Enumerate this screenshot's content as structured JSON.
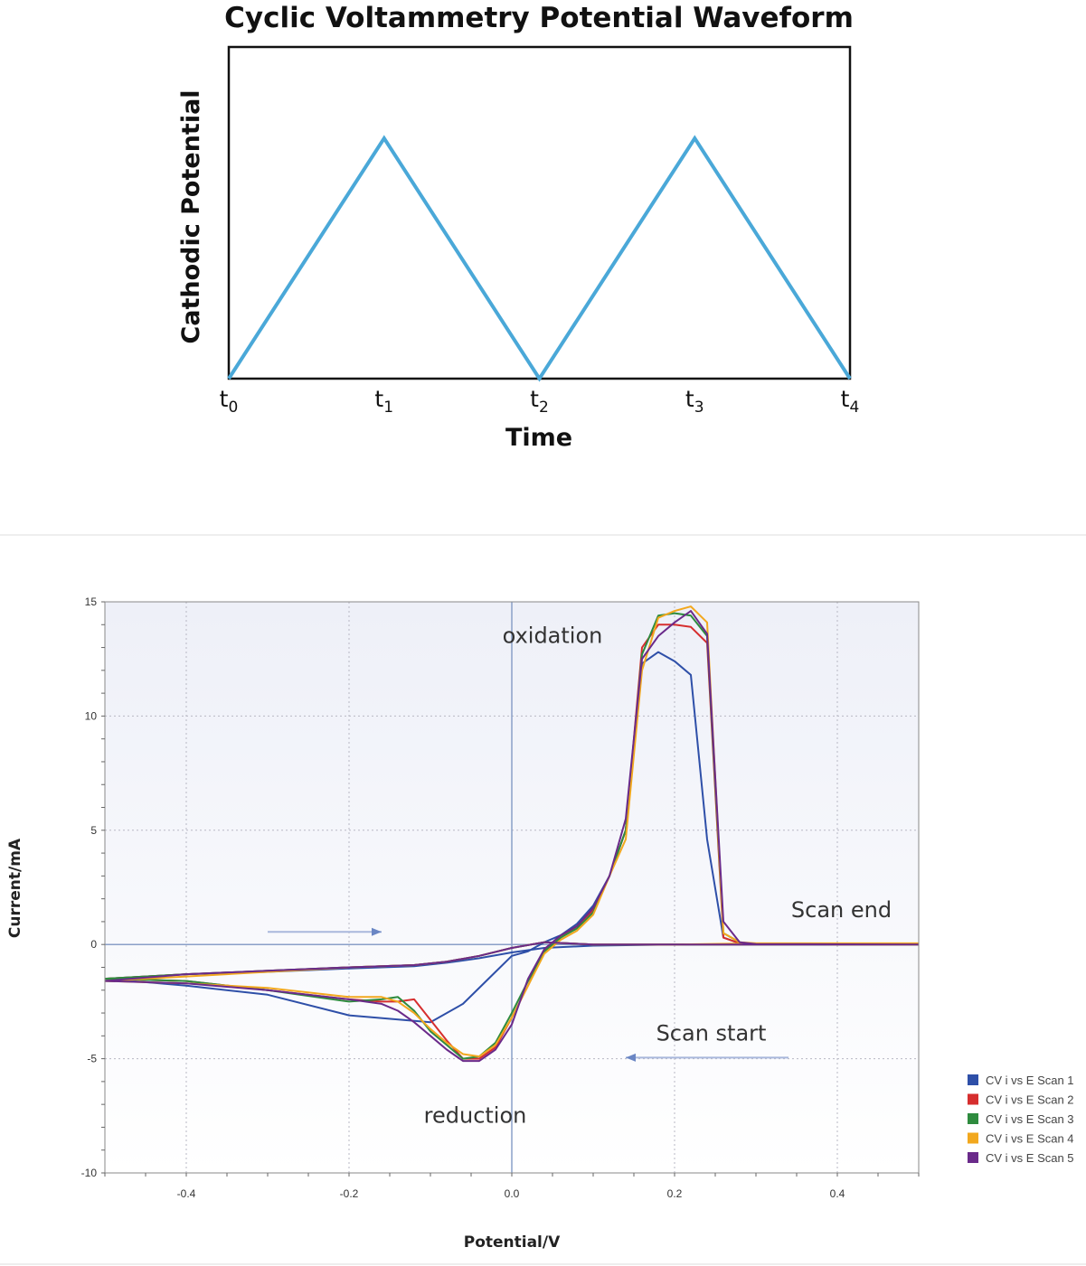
{
  "chart_data": [
    {
      "type": "line",
      "title": "Cyclic Voltammetry Potential Waveform",
      "xlabel": "Time",
      "ylabel": "Cathodic Potential",
      "x_ticks": [
        {
          "main": "t",
          "sub": "0",
          "x": 0
        },
        {
          "main": "t",
          "sub": "1",
          "x": 1
        },
        {
          "main": "t",
          "sub": "2",
          "x": 2
        },
        {
          "main": "t",
          "sub": "3",
          "x": 3
        },
        {
          "main": "t",
          "sub": "4",
          "x": 4
        }
      ],
      "xlim": [
        0,
        4
      ],
      "ylim": [
        0,
        1.38
      ],
      "series": [
        {
          "color": "#4aa8d8",
          "x": [
            0,
            1,
            2,
            3,
            4
          ],
          "y": [
            0,
            1,
            0,
            1,
            0
          ]
        }
      ],
      "grid": false
    },
    {
      "type": "line",
      "title": "",
      "xlabel": "Potential/V",
      "ylabel": "Current/mA",
      "xlim": [
        -0.5,
        0.5
      ],
      "ylim": [
        -10,
        15
      ],
      "x_ticks": [
        -0.4,
        -0.2,
        0.0,
        0.2,
        0.4
      ],
      "x_tick_labels": [
        "-0.4",
        "-0.2",
        "0.0",
        "0.2",
        "0.4"
      ],
      "y_ticks": [
        -10,
        -5,
        0,
        5,
        10,
        15
      ],
      "y_tick_labels": [
        "-10",
        "-5",
        "0",
        "5",
        "10",
        "15"
      ],
      "grid": true,
      "legend_position": "outside-right-bottom",
      "annotations": [
        {
          "text": "oxidation",
          "x": 0.05,
          "y": 13.2
        },
        {
          "text": "Scan end",
          "x": 0.405,
          "y": 1.2
        },
        {
          "text": "Scan start",
          "x": 0.245,
          "y": -4.2
        },
        {
          "text": "reduction",
          "x": -0.045,
          "y": -7.8
        }
      ],
      "arrows": [
        {
          "from": [
            -0.3,
            0.55
          ],
          "to": [
            -0.16,
            0.55
          ],
          "direction": "right"
        },
        {
          "from": [
            0.34,
            -4.95
          ],
          "to": [
            0.14,
            -4.95
          ],
          "direction": "left"
        }
      ],
      "series": [
        {
          "name": "CV i vs E Scan 1",
          "color": "#2e4fa8",
          "x": [
            0.5,
            0.3,
            0.28,
            0.26,
            0.24,
            0.22,
            0.2,
            0.18,
            0.16,
            0.14,
            0.12,
            0.1,
            0.08,
            0.06,
            0.04,
            0.02,
            0.0,
            -0.02,
            -0.06,
            -0.1,
            -0.2,
            -0.3,
            -0.4,
            -0.5,
            -0.5,
            -0.4,
            -0.3,
            -0.2,
            -0.12,
            -0.08,
            -0.04,
            0.0,
            0.04,
            0.1,
            0.2,
            0.3,
            0.4,
            0.5
          ],
          "y": [
            0.0,
            0.02,
            0.05,
            0.3,
            4.6,
            11.8,
            12.4,
            12.8,
            12.3,
            5.0,
            3.0,
            1.7,
            0.9,
            0.4,
            0.1,
            -0.3,
            -0.5,
            -1.2,
            -2.6,
            -3.4,
            -3.1,
            -2.2,
            -1.8,
            -1.5,
            -1.5,
            -1.3,
            -1.2,
            -1.05,
            -0.95,
            -0.8,
            -0.6,
            -0.35,
            -0.15,
            -0.05,
            0.0,
            0.02,
            0.0,
            0.0
          ]
        },
        {
          "name": "CV i vs E Scan 2",
          "color": "#d62e2e",
          "x": [
            0.5,
            0.3,
            0.28,
            0.26,
            0.24,
            0.22,
            0.2,
            0.18,
            0.16,
            0.14,
            0.12,
            0.1,
            0.08,
            0.06,
            0.04,
            0.02,
            0.0,
            -0.02,
            -0.04,
            -0.06,
            -0.08,
            -0.1,
            -0.12,
            -0.14,
            -0.16,
            -0.2,
            -0.3,
            -0.4,
            -0.5,
            -0.5,
            -0.4,
            -0.3,
            -0.2,
            -0.12,
            -0.08,
            -0.04,
            0.0,
            0.04,
            0.1,
            0.2,
            0.3,
            0.4,
            0.5
          ],
          "y": [
            0.0,
            0.02,
            0.05,
            0.3,
            13.2,
            13.9,
            14.0,
            14.0,
            13.0,
            5.0,
            3.0,
            1.5,
            0.8,
            0.3,
            -0.3,
            -1.8,
            -3.2,
            -4.5,
            -5.0,
            -5.0,
            -4.2,
            -3.3,
            -2.4,
            -2.5,
            -2.5,
            -2.4,
            -2.0,
            -1.6,
            -1.5,
            -1.5,
            -1.3,
            -1.15,
            -1.0,
            -0.9,
            -0.75,
            -0.5,
            -0.15,
            0.1,
            0.0,
            0.0,
            0.0,
            0.0,
            0.0
          ]
        },
        {
          "name": "CV i vs E Scan 3",
          "color": "#2e8b3e",
          "x": [
            0.5,
            0.3,
            0.28,
            0.26,
            0.24,
            0.22,
            0.2,
            0.18,
            0.16,
            0.14,
            0.12,
            0.1,
            0.08,
            0.06,
            0.04,
            0.02,
            0.0,
            -0.02,
            -0.04,
            -0.06,
            -0.08,
            -0.1,
            -0.12,
            -0.14,
            -0.16,
            -0.2,
            -0.3,
            -0.4,
            -0.5,
            -0.5,
            -0.4,
            -0.3,
            -0.2,
            -0.12,
            -0.08,
            -0.04,
            0.0,
            0.04,
            0.1,
            0.2,
            0.3,
            0.4,
            0.5
          ],
          "y": [
            0.0,
            0.02,
            0.1,
            0.5,
            13.5,
            14.4,
            14.5,
            14.4,
            12.7,
            5.0,
            3.0,
            1.4,
            0.7,
            0.3,
            -0.3,
            -1.6,
            -3.0,
            -4.3,
            -4.9,
            -5.0,
            -4.4,
            -3.8,
            -2.9,
            -2.3,
            -2.4,
            -2.5,
            -2.0,
            -1.6,
            -1.5,
            -1.5,
            -1.3,
            -1.15,
            -1.0,
            -0.9,
            -0.75,
            -0.5,
            -0.15,
            0.1,
            0.0,
            0.0,
            0.0,
            0.0,
            0.0
          ]
        },
        {
          "name": "CV i vs E Scan 4",
          "color": "#f2a81e",
          "x": [
            0.5,
            0.3,
            0.28,
            0.26,
            0.24,
            0.22,
            0.2,
            0.18,
            0.16,
            0.14,
            0.12,
            0.1,
            0.08,
            0.06,
            0.04,
            0.02,
            0.0,
            -0.02,
            -0.04,
            -0.06,
            -0.08,
            -0.1,
            -0.12,
            -0.14,
            -0.16,
            -0.2,
            -0.3,
            -0.4,
            -0.5,
            -0.5,
            -0.4,
            -0.3,
            -0.2,
            -0.12,
            -0.08,
            -0.04,
            0.0,
            0.04,
            0.1,
            0.2,
            0.3,
            0.4,
            0.5
          ],
          "y": [
            0.05,
            0.05,
            0.1,
            0.5,
            14.1,
            14.8,
            14.6,
            14.3,
            12.0,
            4.6,
            3.0,
            1.3,
            0.6,
            0.2,
            -0.4,
            -1.8,
            -3.2,
            -4.4,
            -4.9,
            -4.8,
            -4.3,
            -3.7,
            -3.0,
            -2.5,
            -2.3,
            -2.3,
            -1.9,
            -1.7,
            -1.6,
            -1.6,
            -1.4,
            -1.2,
            -1.0,
            -0.9,
            -0.75,
            -0.5,
            -0.15,
            0.1,
            0.0,
            0.0,
            0.05,
            0.0,
            0.0
          ]
        },
        {
          "name": "CV i vs E Scan 5",
          "color": "#6a2a8a",
          "x": [
            0.5,
            0.3,
            0.28,
            0.26,
            0.24,
            0.22,
            0.2,
            0.18,
            0.16,
            0.14,
            0.12,
            0.1,
            0.08,
            0.06,
            0.04,
            0.02,
            0.0,
            -0.02,
            -0.04,
            -0.06,
            -0.08,
            -0.1,
            -0.12,
            -0.14,
            -0.16,
            -0.2,
            -0.3,
            -0.4,
            -0.5,
            -0.5,
            -0.4,
            -0.3,
            -0.2,
            -0.12,
            -0.08,
            -0.04,
            0.0,
            0.04,
            0.1,
            0.2,
            0.3,
            0.4,
            0.5
          ],
          "y": [
            0.0,
            0.02,
            0.1,
            1.0,
            13.6,
            14.6,
            14.1,
            13.5,
            12.5,
            5.5,
            3.0,
            1.6,
            0.8,
            0.4,
            -0.2,
            -1.5,
            -3.5,
            -4.6,
            -5.1,
            -5.1,
            -4.6,
            -4.0,
            -3.4,
            -2.9,
            -2.6,
            -2.4,
            -2.0,
            -1.7,
            -1.6,
            -1.6,
            -1.3,
            -1.15,
            -1.0,
            -0.9,
            -0.75,
            -0.5,
            -0.15,
            0.1,
            0.0,
            0.0,
            0.0,
            0.0,
            0.0
          ]
        }
      ]
    }
  ]
}
